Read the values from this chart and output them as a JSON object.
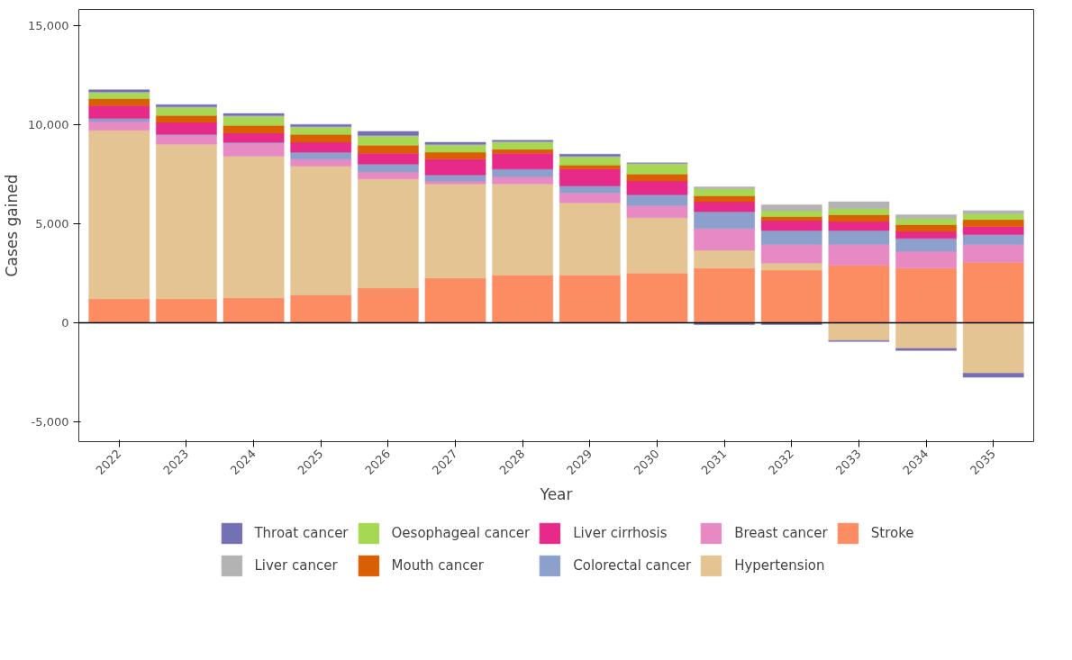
{
  "chart_data": {
    "type": "bar",
    "stacked": true,
    "xlabel": "Year",
    "ylabel": "Cases gained",
    "categories": [
      "2022",
      "2023",
      "2024",
      "2025",
      "2026",
      "2027",
      "2028",
      "2029",
      "2030",
      "2031",
      "2032",
      "2033",
      "2034",
      "2035"
    ],
    "ylim": [
      -6000,
      15800
    ],
    "yticks": [
      {
        "value": -5000,
        "label": "-5,000"
      },
      0,
      {
        "value": 5000,
        "label": "5,000"
      },
      {
        "value": 10000,
        "label": "10,000"
      },
      {
        "value": 15000,
        "label": "15,000"
      }
    ],
    "grid": false,
    "legend": "bottom",
    "ref_lines": [
      {
        "axis": "y",
        "value": 0,
        "color": "#000000"
      }
    ],
    "series": [
      {
        "name": "Stroke",
        "color": "#fc8d62",
        "values": [
          1200,
          1200,
          1250,
          1400,
          1750,
          2250,
          2400,
          2400,
          2500,
          2750,
          2650,
          2900,
          2750,
          3050
        ]
      },
      {
        "name": "Hypertension",
        "color": "#e5c494",
        "values": [
          8500,
          7800,
          7150,
          6500,
          5500,
          4750,
          4600,
          3650,
          2800,
          900,
          350,
          -900,
          -1300,
          -2550
        ]
      },
      {
        "name": "Breast cancer",
        "color": "#e78ac3",
        "values": [
          450,
          450,
          650,
          350,
          350,
          150,
          350,
          500,
          600,
          1100,
          950,
          1050,
          850,
          900
        ]
      },
      {
        "name": "Colorectal cancer",
        "color": "#8da0cb",
        "values": [
          150,
          50,
          50,
          350,
          400,
          300,
          400,
          350,
          550,
          850,
          700,
          700,
          650,
          500
        ]
      },
      {
        "name": "Liver cirrhosis",
        "color": "#e7298a",
        "values": [
          650,
          600,
          450,
          500,
          550,
          800,
          800,
          850,
          700,
          500,
          500,
          450,
          350,
          400
        ]
      },
      {
        "name": "Mouth cancer",
        "color": "#d95f02",
        "values": [
          350,
          350,
          400,
          400,
          400,
          350,
          200,
          200,
          350,
          300,
          200,
          350,
          350,
          350
        ]
      },
      {
        "name": "Oesophageal cancer",
        "color": "#a6d854",
        "values": [
          300,
          400,
          450,
          350,
          450,
          350,
          350,
          400,
          500,
          350,
          300,
          300,
          300,
          300
        ]
      },
      {
        "name": "Liver cancer",
        "color": "#b3b3b3",
        "values": [
          50,
          50,
          50,
          50,
          50,
          50,
          50,
          50,
          50,
          100,
          300,
          350,
          200,
          150
        ]
      },
      {
        "name": "Throat cancer",
        "color": "#7570b3",
        "values": [
          100,
          100,
          100,
          100,
          200,
          100,
          50,
          100,
          0,
          -100,
          -100,
          -50,
          -100,
          -200
        ]
      }
    ]
  }
}
